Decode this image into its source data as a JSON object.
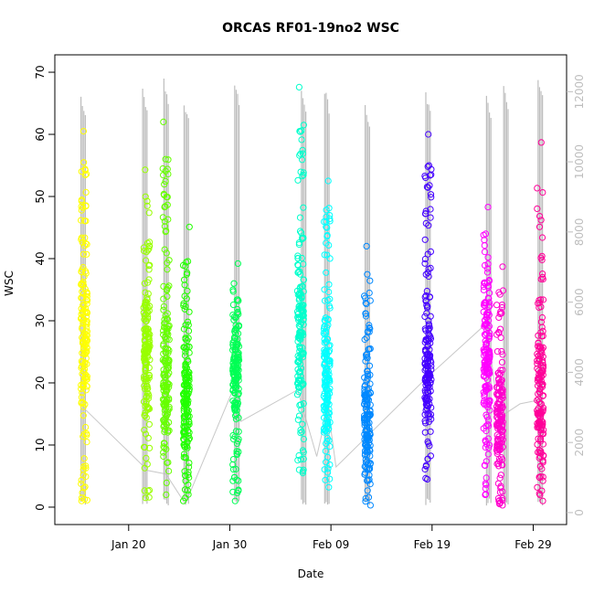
{
  "chart_data": {
    "type": "scatter",
    "title": "ORCAS RF01-19no2 WSC",
    "xlabel": "Date",
    "ylabel": "WSC",
    "x_tick_labels": [
      "Jan 20",
      "Jan 30",
      "Feb 09",
      "Feb 19",
      "Feb 29"
    ],
    "x_tick_days": [
      20,
      30,
      40,
      50,
      60
    ],
    "xlim_days": [
      12.7,
      63.3
    ],
    "ylim": [
      -2.8,
      72.8
    ],
    "y_ticks": [
      0,
      10,
      20,
      30,
      40,
      50,
      60,
      70
    ],
    "y2_ticks": [
      0,
      2000,
      4000,
      6000,
      8000,
      10000,
      12000
    ],
    "y2lim": [
      -340,
      13050
    ],
    "grid": false,
    "secondary_series": {
      "color": "#bdbdbd",
      "note_axis": "right",
      "flight_profiles": [
        {
          "day": 15.5,
          "max": 12000
        },
        {
          "day": 21.6,
          "max": 12100
        },
        {
          "day": 23.7,
          "max": 12400
        },
        {
          "day": 25.7,
          "max": 11800
        },
        {
          "day": 30.7,
          "max": 12300
        },
        {
          "day": 37.3,
          "max": 12200
        },
        {
          "day": 39.6,
          "max": 12150
        },
        {
          "day": 43.6,
          "max": 11700
        },
        {
          "day": 49.6,
          "max": 12050
        },
        {
          "day": 55.6,
          "max": 11900
        },
        {
          "day": 57.3,
          "max": 12250
        },
        {
          "day": 60.7,
          "max": 12500
        }
      ],
      "connector_points": [
        [
          15.5,
          3000
        ],
        [
          21.9,
          1200
        ],
        [
          23.7,
          1100
        ],
        [
          25.6,
          250
        ],
        [
          30.6,
          3700
        ],
        [
          31.1,
          2600
        ],
        [
          36.7,
          3500
        ],
        [
          38.6,
          1600
        ],
        [
          39.7,
          3000
        ],
        [
          40.5,
          1300
        ],
        [
          49.3,
          3800
        ],
        [
          55.4,
          5400
        ],
        [
          56.6,
          2700
        ],
        [
          58.7,
          3100
        ],
        [
          60.4,
          3200
        ]
      ]
    },
    "series": [
      {
        "day": 15.6,
        "color": "#ffff00",
        "min": 1,
        "max": 60.5,
        "mid": 27
      },
      {
        "day": 21.8,
        "color": "#99ff00",
        "min": 1.5,
        "max": 54.3,
        "mid": 27
      },
      {
        "day": 23.7,
        "color": "#66ff00",
        "min": 2,
        "max": 62,
        "mid": 22
      },
      {
        "day": 25.7,
        "color": "#22ff00",
        "min": 1,
        "max": 45.1,
        "mid": 18
      },
      {
        "day": 30.6,
        "color": "#00ff55",
        "min": 1,
        "max": 39.2,
        "mid": 22
      },
      {
        "day": 37.0,
        "color": "#00ffcc",
        "min": 5.5,
        "max": 67.6,
        "mid": 28
      },
      {
        "day": 39.6,
        "color": "#00ffff",
        "min": 3.2,
        "max": 52.5,
        "mid": 20
      },
      {
        "day": 43.6,
        "color": "#0088ff",
        "min": 0.3,
        "max": 42,
        "mid": 14
      },
      {
        "day": 49.6,
        "color": "#4400ff",
        "min": 4.5,
        "max": 60,
        "mid": 20
      },
      {
        "day": 55.4,
        "color": "#ff00ff",
        "min": 2,
        "max": 48.3,
        "mid": 25
      },
      {
        "day": 56.7,
        "color": "#ff00cc",
        "min": 0.3,
        "max": 38.7,
        "mid": 14
      },
      {
        "day": 60.7,
        "color": "#ff0099",
        "min": 1,
        "max": 58.7,
        "mid": 18
      }
    ]
  }
}
